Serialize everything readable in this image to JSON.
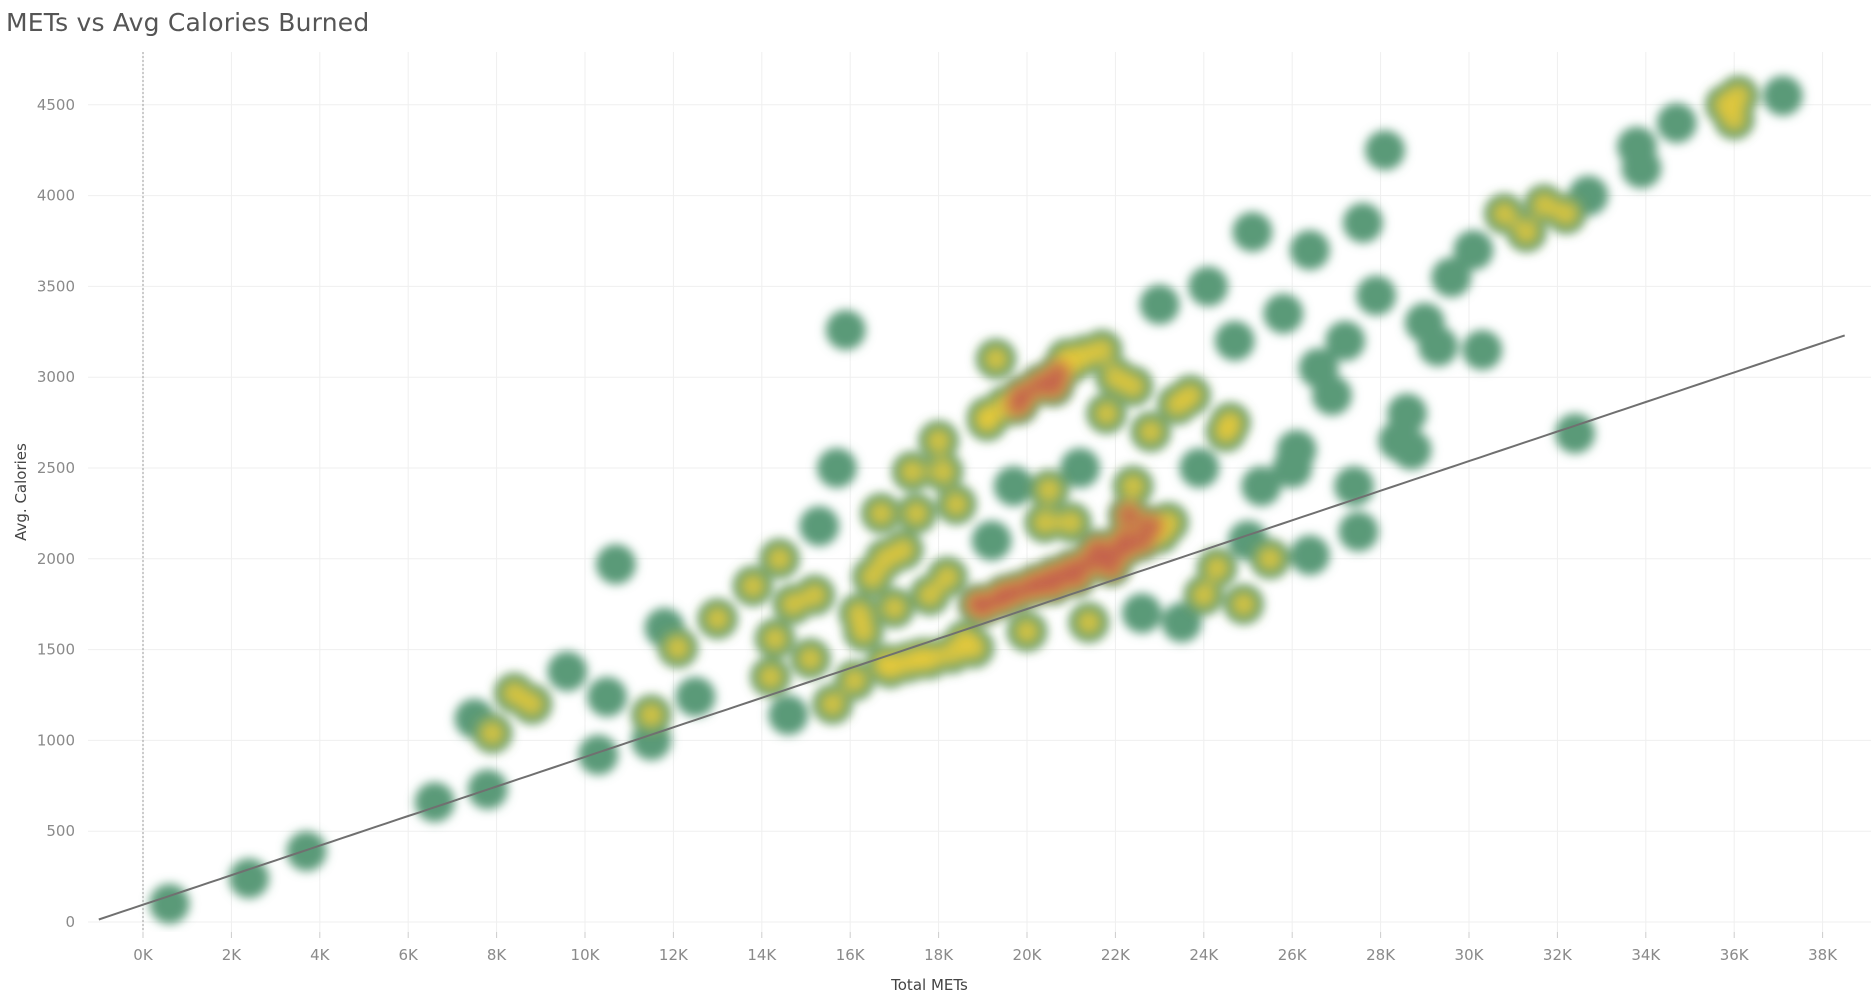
{
  "chart_data": {
    "type": "scatter",
    "title": "METs vs Avg Calories Burned",
    "xlabel": "Total METs",
    "ylabel": "Avg. Calories",
    "xlim": [
      -1000,
      38500
    ],
    "ylim": [
      -50,
      4750
    ],
    "x_ticks": [
      "0K",
      "2K",
      "4K",
      "6K",
      "8K",
      "10K",
      "12K",
      "14K",
      "16K",
      "18K",
      "20K",
      "22K",
      "24K",
      "26K",
      "28K",
      "30K",
      "32K",
      "34K",
      "36K",
      "38K"
    ],
    "x_tick_values": [
      0,
      2000,
      4000,
      6000,
      8000,
      10000,
      12000,
      14000,
      16000,
      18000,
      20000,
      22000,
      24000,
      26000,
      28000,
      30000,
      32000,
      34000,
      36000,
      38000
    ],
    "y_ticks": [
      "0",
      "500",
      "1000",
      "1500",
      "2000",
      "2500",
      "3000",
      "3500",
      "4000",
      "4500"
    ],
    "y_tick_values": [
      0,
      500,
      1000,
      1500,
      2000,
      2500,
      3000,
      3500,
      4000,
      4500
    ],
    "grid": true,
    "density": true,
    "colors": {
      "low": "#5a9a78",
      "mid": "#e8c93a",
      "high": "#c4624e",
      "trend": "#707070"
    },
    "trendline": {
      "type": "polynomial",
      "coefficients": [
        95,
        0.0814,
        9e-07
      ]
    },
    "points": [
      [
        600,
        100
      ],
      [
        2400,
        240
      ],
      [
        3700,
        390
      ],
      [
        6600,
        660
      ],
      [
        7800,
        730
      ],
      [
        7500,
        1120
      ],
      [
        7900,
        1040
      ],
      [
        8400,
        1260
      ],
      [
        8800,
        1200
      ],
      [
        9600,
        1380
      ],
      [
        10300,
        920
      ],
      [
        10500,
        1240
      ],
      [
        10700,
        1970
      ],
      [
        11500,
        1140
      ],
      [
        11500,
        1000
      ],
      [
        11800,
        1620
      ],
      [
        12100,
        1510
      ],
      [
        12500,
        1240
      ],
      [
        13000,
        1670
      ],
      [
        13800,
        1850
      ],
      [
        14200,
        1350
      ],
      [
        14300,
        1560
      ],
      [
        14400,
        2000
      ],
      [
        14600,
        1140
      ],
      [
        14700,
        1750
      ],
      [
        15100,
        1450
      ],
      [
        15200,
        1800
      ],
      [
        15300,
        2180
      ],
      [
        15600,
        1200
      ],
      [
        15700,
        2500
      ],
      [
        15900,
        3260
      ],
      [
        16100,
        1330
      ],
      [
        16300,
        1600
      ],
      [
        16500,
        1900
      ],
      [
        16700,
        2250
      ],
      [
        16900,
        1400
      ],
      [
        17000,
        1730
      ],
      [
        17200,
        2050
      ],
      [
        17400,
        2480
      ],
      [
        17600,
        1450
      ],
      [
        17800,
        1800
      ],
      [
        18000,
        2650
      ],
      [
        18200,
        1900
      ],
      [
        18400,
        2300
      ],
      [
        18600,
        1550
      ],
      [
        18900,
        1750
      ],
      [
        19100,
        2780
      ],
      [
        19200,
        2100
      ],
      [
        19300,
        3100
      ],
      [
        19500,
        1800
      ],
      [
        19700,
        2400
      ],
      [
        19800,
        2850
      ],
      [
        20000,
        1600
      ],
      [
        20200,
        1850
      ],
      [
        20400,
        2200
      ],
      [
        20600,
        2950
      ],
      [
        20900,
        3100
      ],
      [
        21100,
        1900
      ],
      [
        21200,
        2500
      ],
      [
        21400,
        1650
      ],
      [
        21600,
        2050
      ],
      [
        21800,
        2800
      ],
      [
        22000,
        3000
      ],
      [
        22200,
        2100
      ],
      [
        22400,
        2400
      ],
      [
        22600,
        1700
      ],
      [
        22800,
        2700
      ],
      [
        23000,
        3400
      ],
      [
        23200,
        2200
      ],
      [
        23500,
        1650
      ],
      [
        23700,
        2900
      ],
      [
        23900,
        2500
      ],
      [
        24100,
        3500
      ],
      [
        24300,
        1950
      ],
      [
        24500,
        2700
      ],
      [
        24700,
        3200
      ],
      [
        24900,
        1750
      ],
      [
        25100,
        3800
      ],
      [
        25300,
        2400
      ],
      [
        25500,
        2000
      ],
      [
        25800,
        3350
      ],
      [
        26100,
        2600
      ],
      [
        26400,
        3700
      ],
      [
        26600,
        3050
      ],
      [
        26900,
        2900
      ],
      [
        27200,
        3200
      ],
      [
        27500,
        2150
      ],
      [
        27600,
        3850
      ],
      [
        27900,
        3450
      ],
      [
        28100,
        4250
      ],
      [
        28400,
        2650
      ],
      [
        28700,
        2600
      ],
      [
        29000,
        3300
      ],
      [
        29300,
        3170
      ],
      [
        29600,
        3550
      ],
      [
        30100,
        3700
      ],
      [
        30300,
        3150
      ],
      [
        30800,
        3900
      ],
      [
        31300,
        3800
      ],
      [
        31700,
        3950
      ],
      [
        32200,
        3900
      ],
      [
        32400,
        2690
      ],
      [
        32700,
        4000
      ],
      [
        33800,
        4270
      ],
      [
        33900,
        4150
      ],
      [
        34700,
        4400
      ],
      [
        35800,
        4500
      ],
      [
        36000,
        4420
      ],
      [
        36100,
        4550
      ],
      [
        37100,
        4550
      ],
      [
        19100,
        2760
      ],
      [
        19500,
        2840
      ],
      [
        19900,
        2900
      ],
      [
        20300,
        2960
      ],
      [
        20700,
        3020
      ],
      [
        21000,
        3080
      ],
      [
        21300,
        3120
      ],
      [
        21700,
        3150
      ],
      [
        19000,
        1740
      ],
      [
        19400,
        1780
      ],
      [
        19800,
        1820
      ],
      [
        20200,
        1860
      ],
      [
        20600,
        1900
      ],
      [
        21000,
        1940
      ],
      [
        21400,
        1980
      ],
      [
        21800,
        2020
      ],
      [
        22200,
        2060
      ],
      [
        22600,
        2100
      ],
      [
        23000,
        2140
      ],
      [
        22300,
        2240
      ],
      [
        22800,
        2180
      ],
      [
        20600,
        1860
      ],
      [
        21900,
        1960
      ],
      [
        16800,
        1420
      ],
      [
        17300,
        1430
      ],
      [
        17800,
        1450
      ],
      [
        18300,
        1480
      ],
      [
        18800,
        1510
      ],
      [
        16200,
        1700
      ],
      [
        16800,
        2000
      ],
      [
        17500,
        2250
      ],
      [
        18100,
        2480
      ],
      [
        24600,
        2750
      ],
      [
        23400,
        2850
      ],
      [
        22400,
        2950
      ],
      [
        26000,
        2500
      ],
      [
        27400,
        2400
      ],
      [
        28600,
        2800
      ],
      [
        24000,
        1800
      ],
      [
        25000,
        2100
      ],
      [
        26400,
        2020
      ],
      [
        20500,
        2380
      ],
      [
        21000,
        2200
      ]
    ]
  }
}
